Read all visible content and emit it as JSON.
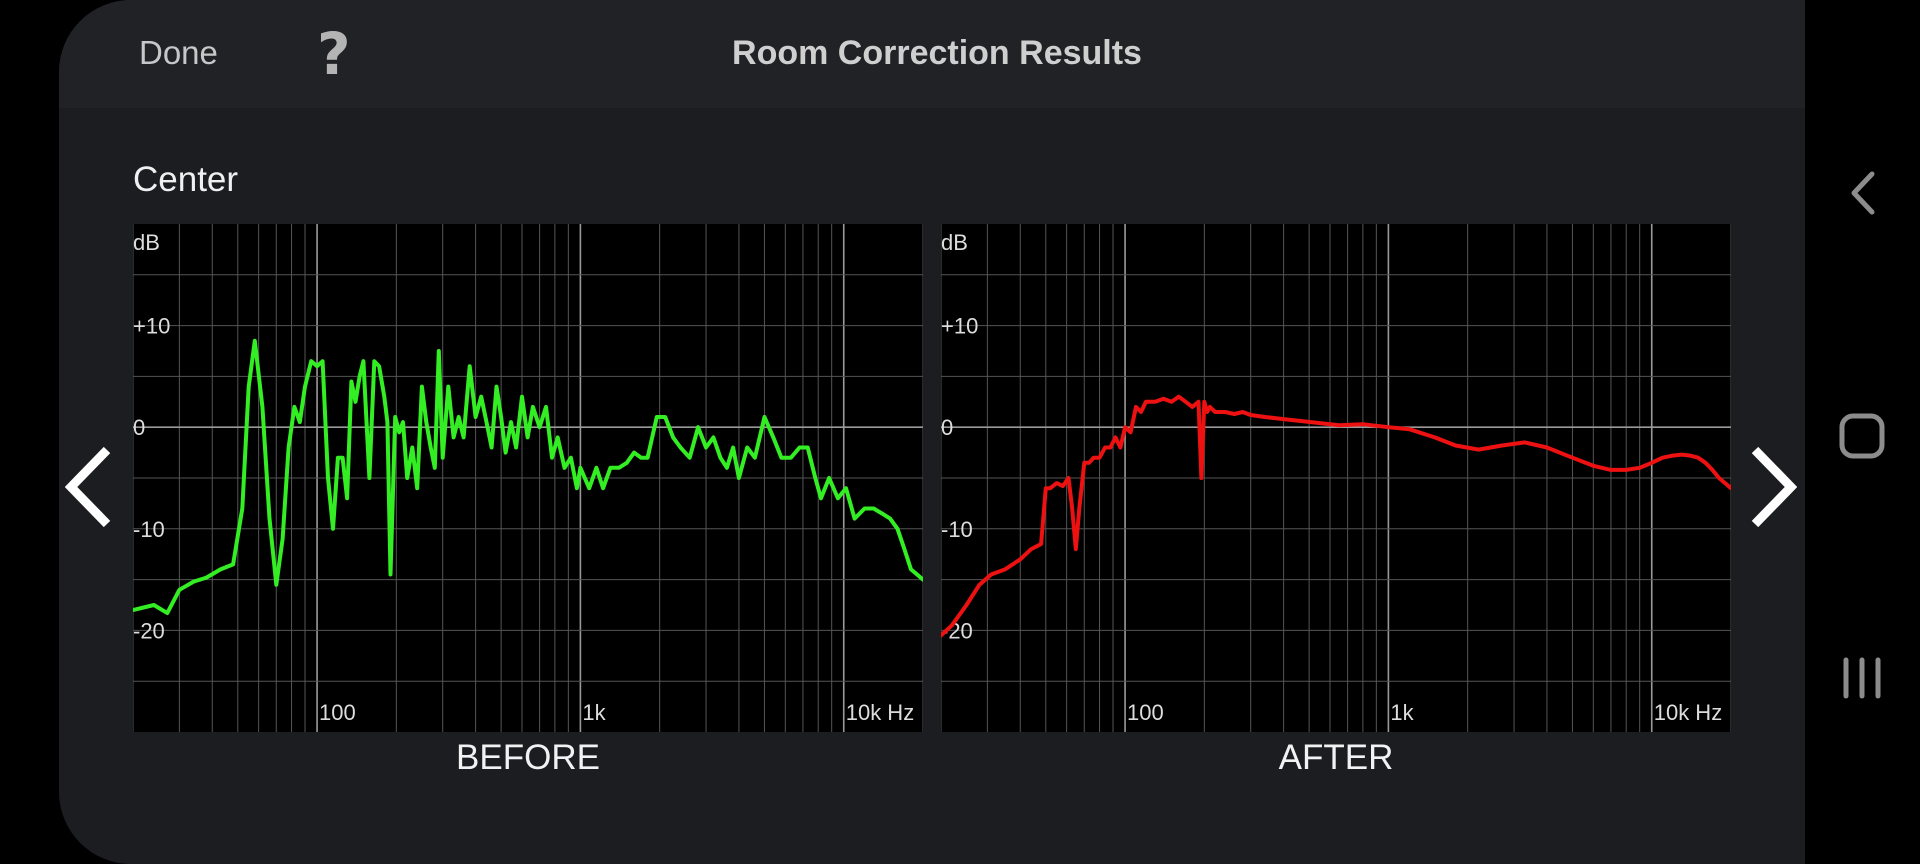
{
  "header": {
    "done_label": "Done",
    "help_label": "?",
    "title": "Room Correction Results"
  },
  "channel": "Center",
  "colors": {
    "before_line": "#33ee22",
    "after_line": "#ee1111",
    "grid": "#555555",
    "major_grid": "#9a9a9a"
  },
  "icons": {
    "prev": "chevron-left-icon",
    "next": "chevron-right-icon",
    "system_back": "back-icon",
    "system_home": "home-icon",
    "system_recents": "recents-icon"
  },
  "chart_data": [
    {
      "type": "line",
      "caption": "BEFORE",
      "ylabel": "dB",
      "xlabel": "Hz",
      "x_scale": "log",
      "xlim": [
        20,
        20000
      ],
      "ylim": [
        -30,
        20
      ],
      "x_tick_labels": [
        "100",
        "1k",
        "10k Hz"
      ],
      "y_tick_labels": [
        "+10",
        "0",
        "-10",
        "-20"
      ],
      "grid": true,
      "series": [
        {
          "x": [
            20,
            24,
            27,
            30,
            34,
            38,
            43,
            48,
            52,
            55,
            58,
            62,
            66,
            70,
            74,
            78,
            82,
            86,
            90,
            95,
            100,
            105,
            110,
            115,
            120,
            125,
            130,
            135,
            140,
            145,
            150,
            158,
            165,
            172,
            180,
            185,
            190,
            198,
            205,
            212,
            220,
            230,
            240,
            250,
            260,
            270,
            280,
            290,
            300,
            315,
            330,
            345,
            360,
            380,
            400,
            420,
            440,
            460,
            480,
            500,
            520,
            545,
            570,
            600,
            630,
            660,
            700,
            740,
            780,
            820,
            870,
            920,
            970,
            1000,
            1080,
            1150,
            1220,
            1300,
            1400,
            1500,
            1600,
            1700,
            1800,
            1950,
            2100,
            2250,
            2400,
            2600,
            2800,
            3000,
            3200,
            3400,
            3600,
            3800,
            4000,
            4300,
            4600,
            5000,
            5400,
            5800,
            6300,
            6800,
            7300,
            7800,
            8200,
            8800,
            9500,
            10200,
            11000,
            12000,
            13000,
            14000,
            15000,
            16000,
            17000,
            18000,
            19000,
            20000
          ],
          "y": [
            -18,
            -17.5,
            -18.3,
            -16,
            -15.2,
            -14.8,
            -14,
            -13.5,
            -8,
            4,
            8.5,
            2,
            -9,
            -15.5,
            -11,
            -2,
            2,
            0.5,
            4,
            6.5,
            6,
            6.5,
            -5,
            -10,
            -3,
            -3,
            -7,
            4.5,
            2.5,
            5,
            6.5,
            -5,
            6.5,
            6,
            3,
            0.5,
            -14.5,
            1,
            -0.5,
            0.5,
            -5,
            -2,
            -6,
            4,
            0.5,
            -2,
            -4,
            7.5,
            -3,
            4,
            -1,
            1,
            -1,
            6,
            1,
            3,
            0.5,
            -2,
            4,
            1,
            -2.5,
            0.5,
            -2,
            3,
            -1,
            2,
            0,
            2,
            -3,
            -1,
            -4,
            -3,
            -6,
            -4,
            -6,
            -4,
            -6,
            -4,
            -4,
            -3.5,
            -2.5,
            -3,
            -3,
            1,
            1,
            -1,
            -2,
            -3,
            0,
            -2,
            -1,
            -3,
            -4,
            -2,
            -5,
            -2,
            -3,
            1,
            -1,
            -3,
            -3,
            -2,
            -2,
            -5,
            -7,
            -5,
            -7,
            -6,
            -9,
            -8,
            -8,
            -8.5,
            -9,
            -10,
            -12,
            -14,
            -14.5,
            -15
          ]
        }
      ]
    },
    {
      "type": "line",
      "caption": "AFTER",
      "ylabel": "dB",
      "xlabel": "Hz",
      "x_scale": "log",
      "xlim": [
        20,
        20000
      ],
      "ylim": [
        -30,
        20
      ],
      "x_tick_labels": [
        "100",
        "1k",
        "10k Hz"
      ],
      "y_tick_labels": [
        "+10",
        "0",
        "-10",
        "-20"
      ],
      "grid": true,
      "series": [
        {
          "x": [
            20,
            22,
            25,
            28,
            31,
            35,
            40,
            44,
            48,
            50,
            52,
            55,
            58,
            61,
            63,
            65,
            67,
            70,
            73,
            76,
            80,
            84,
            88,
            92,
            96,
            100,
            105,
            110,
            115,
            120,
            130,
            140,
            150,
            160,
            170,
            180,
            190,
            195,
            200,
            205,
            210,
            220,
            240,
            260,
            280,
            300,
            340,
            400,
            470,
            550,
            650,
            800,
            1000,
            1200,
            1500,
            1800,
            2200,
            2700,
            3300,
            4000,
            5000,
            6000,
            7000,
            8000,
            9000,
            10000,
            11000,
            12000,
            13000,
            14000,
            15000,
            16000,
            17000,
            18000,
            19000,
            20000
          ],
          "y": [
            -20.5,
            -19.5,
            -17.5,
            -15.5,
            -14.5,
            -14,
            -13,
            -12,
            -11.5,
            -6,
            -6,
            -5.5,
            -5.8,
            -5,
            -8,
            -12,
            -8,
            -3.5,
            -3.5,
            -3,
            -3,
            -2,
            -2,
            -1,
            -2,
            0,
            -0.5,
            2,
            1.5,
            2.5,
            2.5,
            2.8,
            2.5,
            3,
            2.5,
            2,
            2.5,
            -5,
            2.5,
            1.5,
            2,
            1.5,
            1.5,
            1.3,
            1.5,
            1.2,
            1,
            0.8,
            0.6,
            0.4,
            0.2,
            0.3,
            0,
            -0.2,
            -1,
            -1.8,
            -2.2,
            -1.8,
            -1.5,
            -2,
            -3,
            -3.8,
            -4.2,
            -4.2,
            -4,
            -3.5,
            -3,
            -2.8,
            -2.7,
            -2.8,
            -3,
            -3.5,
            -4.2,
            -5,
            -5.5,
            -6
          ]
        }
      ]
    }
  ]
}
